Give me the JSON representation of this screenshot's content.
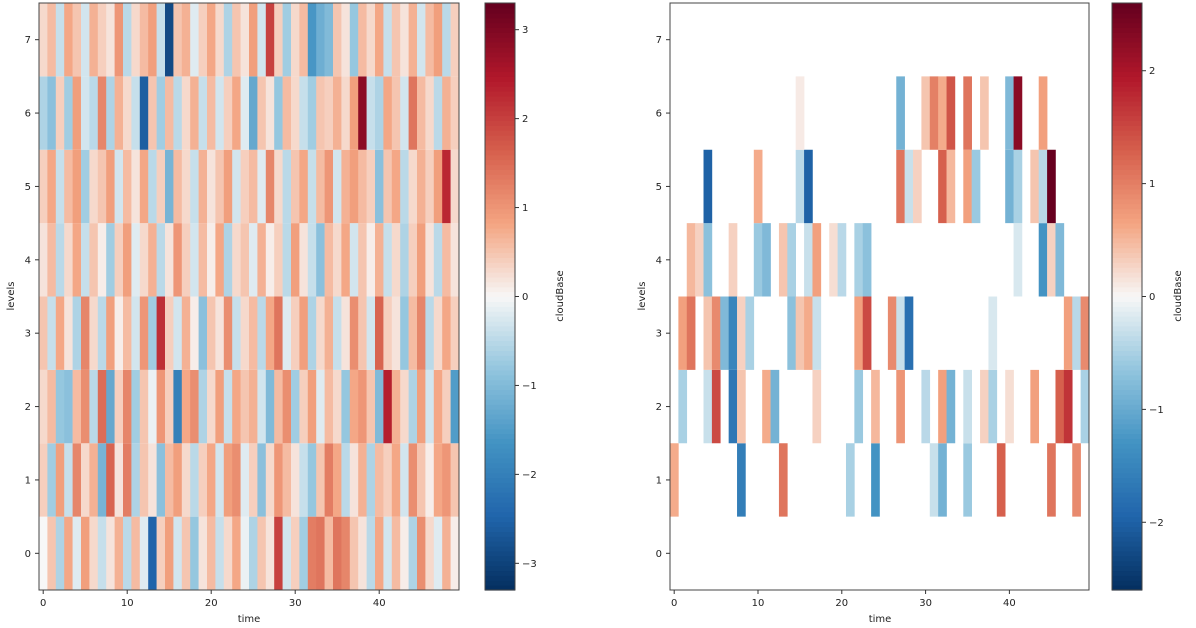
{
  "chart_data": [
    {
      "type": "heatmap",
      "xlabel": "time",
      "ylabel": "levels",
      "xticks": [
        0,
        10,
        20,
        30,
        40
      ],
      "yticks": [
        0,
        1,
        2,
        3,
        4,
        5,
        6,
        7
      ],
      "xlim": [
        -0.5,
        49.5
      ],
      "ylim": [
        -0.5,
        7.5
      ],
      "colorbar": {
        "label": "cloudBase",
        "ticks": [
          -3,
          -2,
          -1,
          0,
          1,
          2,
          3
        ],
        "range": [
          -3.3,
          3.3
        ],
        "cmap": "RdBu_r"
      },
      "cells": [
        [
          0.0,
          0.5,
          -0.6,
          0.8,
          -0.2,
          0.9,
          0.3,
          -0.4,
          0.2,
          0.7,
          -0.5,
          0.6,
          -0.2,
          -2.5,
          0.4,
          0.9,
          -0.3,
          0.5,
          -0.8,
          0.2,
          0.6,
          -0.4,
          0.3,
          0.8,
          -0.1,
          -0.6,
          0.5,
          0.2,
          2.0,
          -0.3,
          0.4,
          -0.7,
          1.3,
          1.4,
          0.6,
          1.4,
          1.2,
          0.5,
          0.2,
          -0.5,
          0.8,
          -0.3,
          0.6,
          0.1,
          -0.6,
          1.1,
          0.3,
          -0.2,
          0.7,
          0.1
        ],
        [
          0.4,
          -0.7,
          0.9,
          -0.4,
          1.2,
          0.3,
          0.7,
          -1.1,
          1.6,
          0.2,
          1.3,
          -0.6,
          0.5,
          0.2,
          -0.9,
          0.6,
          0.9,
          0.3,
          -0.5,
          0.4,
          0.8,
          -0.3,
          0.9,
          1.1,
          -0.2,
          0.4,
          -0.9,
          0.3,
          1.0,
          0.6,
          0.2,
          -0.4,
          -0.8,
          0.5,
          1.3,
          0.8,
          -0.5,
          0.2,
          0.7,
          -0.6,
          0.6,
          0.4,
          0.8,
          -0.3,
          1.1,
          0.5,
          0.1,
          0.8,
          1.0,
          0.5
        ],
        [
          0.3,
          0.6,
          -0.8,
          -0.9,
          0.6,
          1.1,
          -0.5,
          1.5,
          -1.3,
          0.4,
          1.2,
          -0.7,
          0.5,
          -0.1,
          1.0,
          0.4,
          -2.0,
          0.8,
          1.1,
          -0.6,
          0.3,
          0.9,
          -0.4,
          0.8,
          0.5,
          0.7,
          -0.3,
          -1.0,
          0.6,
          1.1,
          -0.7,
          0.4,
          0.9,
          -0.2,
          0.6,
          0.3,
          -0.8,
          0.8,
          1.0,
          0.5,
          -1.0,
          2.4,
          0.7,
          0.3,
          -0.6,
          0.9,
          -0.3,
          0.8,
          0.4,
          -1.5
        ],
        [
          0.5,
          -0.4,
          0.8,
          0.2,
          -0.6,
          1.2,
          0.3,
          -0.5,
          0.9,
          0.1,
          0.6,
          -0.3,
          1.0,
          -0.7,
          2.2,
          0.4,
          -0.3,
          0.7,
          0.1,
          -0.9,
          0.5,
          0.2,
          1.1,
          -0.4,
          0.3,
          0.6,
          -0.5,
          0.8,
          1.4,
          -0.2,
          0.4,
          0.9,
          -0.6,
          0.3,
          0.7,
          -0.4,
          0.2,
          1.1,
          0.5,
          -0.3,
          1.6,
          0.4,
          0.2,
          -0.8,
          0.6,
          1.2,
          -0.5,
          0.3,
          0.8,
          0.4
        ],
        [
          0.2,
          0.6,
          -0.5,
          0.3,
          0.8,
          -0.4,
          0.5,
          0.1,
          -0.7,
          0.4,
          0.9,
          -0.2,
          0.3,
          0.7,
          -0.5,
          0.2,
          1.0,
          0.4,
          -0.3,
          0.6,
          0.1,
          0.8,
          -0.6,
          0.3,
          0.5,
          -0.2,
          0.7,
          0.1,
          0.4,
          -0.5,
          0.9,
          0.2,
          -0.4,
          -0.9,
          0.6,
          0.3,
          0.8,
          -0.3,
          0.5,
          0.1,
          0.7,
          -0.4,
          0.3,
          -0.6,
          0.4,
          0.9,
          0.2,
          -0.5,
          0.6,
          0.2
        ],
        [
          0.4,
          0.8,
          -0.4,
          0.6,
          0.9,
          -0.7,
          0.3,
          0.5,
          0.9,
          -0.3,
          0.6,
          0.2,
          0.8,
          -0.5,
          0.4,
          -1.1,
          0.6,
          0.3,
          -0.4,
          0.7,
          0.2,
          0.5,
          0.9,
          -0.3,
          0.4,
          0.6,
          -0.2,
          1.2,
          0.3,
          -0.5,
          0.5,
          0.8,
          -0.4,
          0.6,
          1.0,
          -0.3,
          0.7,
          0.9,
          0.6,
          0.4,
          -0.9,
          0.5,
          0.8,
          -0.5,
          0.3,
          0.7,
          0.4,
          0.9,
          2.3,
          0.3
        ],
        [
          -0.6,
          -0.9,
          0.4,
          -0.7,
          0.9,
          -0.3,
          -0.5,
          1.2,
          -0.6,
          0.7,
          0.3,
          -0.4,
          -2.6,
          0.5,
          -0.7,
          0.6,
          -0.5,
          0.3,
          0.7,
          -0.4,
          0.6,
          -0.3,
          0.4,
          0.8,
          -0.2,
          -1.3,
          0.5,
          0.2,
          -0.8,
          0.6,
          0.3,
          -0.4,
          -0.7,
          0.5,
          0.4,
          0.7,
          0.3,
          0.9,
          2.9,
          -0.4,
          -0.6,
          0.8,
          0.5,
          -0.3,
          1.4,
          0.6,
          0.3,
          -0.5,
          0.7,
          0.4
        ],
        [
          0.3,
          0.6,
          -0.4,
          0.8,
          0.5,
          -0.3,
          0.7,
          0.4,
          0.2,
          1.0,
          -0.5,
          0.3,
          0.6,
          0.9,
          -0.4,
          -2.9,
          0.5,
          0.7,
          -0.2,
          0.4,
          0.8,
          0.3,
          -0.6,
          0.5,
          0.2,
          0.9,
          -0.3,
          2.0,
          0.4,
          -0.7,
          0.3,
          0.6,
          -1.6,
          -1.2,
          -1.0,
          0.5,
          0.2,
          -0.8,
          0.6,
          0.3,
          0.8,
          -0.4,
          0.5,
          0.2,
          0.7,
          -0.3,
          0.6,
          0.9,
          -0.5,
          0.4
        ]
      ]
    },
    {
      "type": "heatmap",
      "xlabel": "time",
      "ylabel": "levels",
      "xticks": [
        0,
        10,
        20,
        30,
        40
      ],
      "yticks": [
        0,
        1,
        2,
        3,
        4,
        5,
        6,
        7
      ],
      "xlim": [
        -0.5,
        49.5
      ],
      "ylim": [
        -0.5,
        7.5
      ],
      "colorbar": {
        "label": "cloudBase",
        "ticks": [
          -2,
          -1,
          0,
          1,
          2
        ],
        "range": [
          -2.6,
          2.6
        ],
        "cmap": "RdBu_r"
      },
      "cells": [
        [
          null,
          null,
          null,
          null,
          null,
          null,
          null,
          null,
          null,
          null,
          null,
          null,
          null,
          null,
          null,
          null,
          null,
          null,
          null,
          null,
          null,
          null,
          null,
          null,
          null,
          null,
          null,
          null,
          null,
          null,
          null,
          null,
          null,
          null,
          null,
          null,
          null,
          null,
          null,
          null,
          null,
          null,
          null,
          null,
          null,
          null,
          null,
          null,
          null,
          null
        ],
        [
          0.6,
          null,
          null,
          null,
          null,
          null,
          null,
          null,
          -1.6,
          null,
          null,
          null,
          null,
          1.1,
          null,
          null,
          null,
          null,
          null,
          null,
          null,
          -0.5,
          null,
          null,
          -1.3,
          null,
          null,
          null,
          null,
          null,
          null,
          -0.3,
          -0.9,
          null,
          null,
          -0.6,
          null,
          null,
          null,
          1.3,
          null,
          null,
          null,
          null,
          null,
          1.1,
          null,
          null,
          0.9,
          null
        ],
        [
          null,
          -0.5,
          null,
          null,
          -0.3,
          1.5,
          null,
          -1.7,
          0.4,
          null,
          null,
          0.6,
          -0.9,
          null,
          null,
          null,
          null,
          0.3,
          null,
          null,
          null,
          null,
          -0.6,
          null,
          0.5,
          null,
          null,
          0.8,
          null,
          null,
          -0.4,
          null,
          0.7,
          -0.9,
          null,
          -0.3,
          null,
          0.3,
          -0.5,
          null,
          0.2,
          null,
          null,
          0.7,
          null,
          null,
          1.3,
          1.7,
          null,
          -0.5
        ],
        [
          null,
          0.7,
          1.1,
          null,
          0.4,
          0.9,
          -0.8,
          -1.5,
          0.3,
          -0.5,
          null,
          null,
          null,
          null,
          -0.7,
          0.4,
          0.6,
          -0.3,
          null,
          null,
          null,
          null,
          0.7,
          1.5,
          null,
          null,
          0.9,
          -0.3,
          -1.8,
          null,
          null,
          null,
          null,
          null,
          null,
          null,
          null,
          null,
          -0.2,
          null,
          null,
          null,
          null,
          null,
          null,
          null,
          null,
          0.7,
          -0.4,
          0.9
        ],
        [
          null,
          null,
          0.5,
          0.3,
          -0.7,
          null,
          null,
          0.3,
          null,
          null,
          -0.6,
          -0.8,
          null,
          0.4,
          -0.5,
          null,
          -0.3,
          0.7,
          null,
          0.2,
          -0.4,
          null,
          -0.5,
          -0.7,
          null,
          null,
          null,
          null,
          null,
          null,
          null,
          null,
          null,
          null,
          null,
          null,
          null,
          null,
          null,
          null,
          null,
          -0.2,
          null,
          null,
          -1.3,
          0.3,
          -0.8,
          null,
          null,
          null
        ],
        [
          null,
          null,
          null,
          null,
          -2.0,
          null,
          null,
          null,
          null,
          null,
          0.6,
          null,
          null,
          null,
          null,
          -0.4,
          -2.0,
          null,
          null,
          null,
          null,
          null,
          null,
          null,
          null,
          null,
          null,
          1.1,
          -0.3,
          0.3,
          null,
          null,
          1.3,
          0.5,
          null,
          0.7,
          -0.6,
          null,
          null,
          null,
          -0.9,
          -0.5,
          null,
          0.4,
          -0.4,
          2.6,
          null,
          null,
          null,
          null
        ],
        [
          null,
          null,
          null,
          null,
          null,
          null,
          null,
          null,
          null,
          null,
          null,
          null,
          null,
          null,
          null,
          0.1,
          null,
          null,
          null,
          null,
          null,
          null,
          null,
          null,
          null,
          null,
          null,
          -0.9,
          null,
          null,
          0.4,
          1.0,
          0.6,
          1.4,
          null,
          1.1,
          null,
          0.4,
          null,
          null,
          -0.8,
          2.3,
          null,
          null,
          0.7,
          null,
          null,
          null,
          null,
          null
        ],
        [
          null,
          null,
          null,
          null,
          null,
          null,
          null,
          null,
          null,
          null,
          null,
          null,
          null,
          null,
          null,
          null,
          null,
          null,
          null,
          null,
          null,
          null,
          null,
          null,
          null,
          null,
          null,
          null,
          null,
          null,
          null,
          null,
          null,
          null,
          null,
          null,
          null,
          null,
          null,
          null,
          null,
          null,
          null,
          null,
          null,
          null,
          null,
          null,
          null,
          null
        ]
      ]
    }
  ]
}
